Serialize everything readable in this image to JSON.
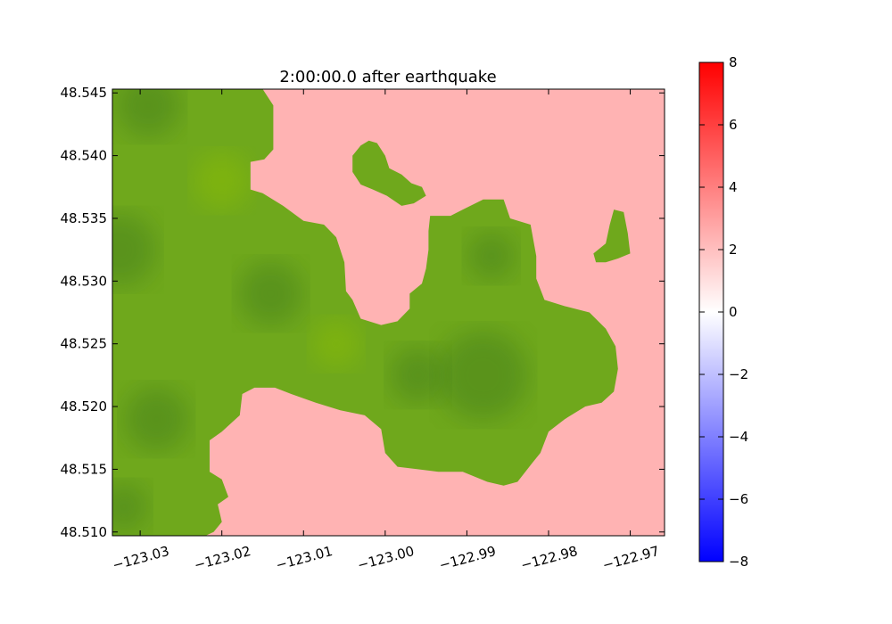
{
  "chart_data": {
    "type": "heatmap",
    "title": "2:00:00.0 after earthquake",
    "xlabel": "",
    "ylabel": "",
    "x_ticks": [
      -123.03,
      -123.02,
      -123.01,
      -123.0,
      -122.99,
      -122.98,
      -122.97
    ],
    "x_tick_labels": [
      "−123.03",
      "−123.02",
      "−123.01",
      "−123.00",
      "−122.99",
      "−122.98",
      "−122.97"
    ],
    "y_ticks": [
      48.51,
      48.515,
      48.52,
      48.525,
      48.53,
      48.535,
      48.54,
      48.545
    ],
    "y_tick_labels": [
      "48.510",
      "48.515",
      "48.520",
      "48.525",
      "48.530",
      "48.535",
      "48.540",
      "48.545"
    ],
    "xlim": [
      -123.0334,
      -122.9658
    ],
    "ylim": [
      48.5097,
      48.5453
    ],
    "grid": false,
    "land_color": "#6fa81c",
    "water_value": 2.4,
    "colorbar": {
      "range": [
        -8,
        8
      ],
      "ticks": [
        8,
        6,
        4,
        2,
        0,
        -2,
        -4,
        -6,
        -8
      ],
      "tick_labels": [
        "8",
        "6",
        "4",
        "2",
        "0",
        "−2",
        "−4",
        "−6",
        "−8"
      ],
      "colors": {
        "low": "#0000ff",
        "mid": "#ffffff",
        "high": "#ff0000"
      }
    },
    "land_regions": [
      {
        "name": "main_island",
        "outline": [
          [
            -123.0334,
            48.5453
          ],
          [
            -123.015,
            48.5453
          ],
          [
            -123.0137,
            48.544
          ],
          [
            -123.0137,
            48.5405
          ],
          [
            -123.0148,
            48.5397
          ],
          [
            -123.0165,
            48.5395
          ],
          [
            -123.0165,
            48.5373
          ],
          [
            -123.015,
            48.537
          ],
          [
            -123.0125,
            48.536
          ],
          [
            -123.01,
            48.5348
          ],
          [
            -123.0075,
            48.5345
          ],
          [
            -123.006,
            48.5335
          ],
          [
            -123.005,
            48.5315
          ],
          [
            -123.0048,
            48.5292
          ],
          [
            -123.004,
            48.5285
          ],
          [
            -123.003,
            48.527
          ],
          [
            -123.0005,
            48.5265
          ],
          [
            -122.9985,
            48.5268
          ],
          [
            -122.997,
            48.5278
          ],
          [
            -122.997,
            48.529
          ],
          [
            -122.9955,
            48.5298
          ],
          [
            -122.995,
            48.531
          ],
          [
            -122.9947,
            48.5325
          ],
          [
            -122.9947,
            48.534
          ],
          [
            -122.9945,
            48.5352
          ],
          [
            -122.992,
            48.5352
          ],
          [
            -122.9905,
            48.5357
          ],
          [
            -122.988,
            48.5365
          ],
          [
            -122.9855,
            48.5365
          ],
          [
            -122.9847,
            48.535
          ],
          [
            -122.9822,
            48.5345
          ],
          [
            -122.9815,
            48.532
          ],
          [
            -122.9815,
            48.5302
          ],
          [
            -122.9805,
            48.5285
          ],
          [
            -122.978,
            48.528
          ],
          [
            -122.975,
            48.5275
          ],
          [
            -122.973,
            48.5262
          ],
          [
            -122.9718,
            48.5248
          ],
          [
            -122.9715,
            48.523
          ],
          [
            -122.972,
            48.5212
          ],
          [
            -122.9735,
            48.5203
          ],
          [
            -122.9755,
            48.52
          ],
          [
            -122.978,
            48.519
          ],
          [
            -122.98,
            48.518
          ],
          [
            -122.981,
            48.5163
          ],
          [
            -122.982,
            48.5155
          ],
          [
            -122.9838,
            48.514
          ],
          [
            -122.9855,
            48.5137
          ],
          [
            -122.9875,
            48.514
          ],
          [
            -122.9905,
            48.5148
          ],
          [
            -122.9935,
            48.5148
          ],
          [
            -122.996,
            48.515
          ],
          [
            -122.9985,
            48.5152
          ],
          [
            -123.0,
            48.5163
          ],
          [
            -123.0005,
            48.5182
          ],
          [
            -123.0025,
            48.5193
          ],
          [
            -123.0055,
            48.5197
          ],
          [
            -123.0085,
            48.5203
          ],
          [
            -123.0115,
            48.521
          ],
          [
            -123.0135,
            48.5215
          ],
          [
            -123.016,
            48.5215
          ],
          [
            -123.0175,
            48.521
          ],
          [
            -123.0178,
            48.5193
          ],
          [
            -123.02,
            48.518
          ],
          [
            -123.0215,
            48.5173
          ],
          [
            -123.0215,
            48.5148
          ],
          [
            -123.02,
            48.5142
          ],
          [
            -123.0192,
            48.5128
          ],
          [
            -123.0205,
            48.5122
          ],
          [
            -123.02,
            48.5108
          ],
          [
            -123.021,
            48.51
          ],
          [
            -123.022,
            48.5097
          ],
          [
            -123.0334,
            48.5097
          ]
        ]
      },
      {
        "name": "inner_island",
        "outline": [
          [
            -123.002,
            48.5412
          ],
          [
            -123.001,
            48.541
          ],
          [
            -123.0,
            48.54
          ],
          [
            -122.9995,
            48.539
          ],
          [
            -122.998,
            48.5385
          ],
          [
            -122.9968,
            48.5378
          ],
          [
            -122.9955,
            48.5375
          ],
          [
            -122.995,
            48.5368
          ],
          [
            -122.9965,
            48.5362
          ],
          [
            -122.998,
            48.536
          ],
          [
            -122.9998,
            48.5368
          ],
          [
            -123.0015,
            48.5373
          ],
          [
            -123.003,
            48.5377
          ],
          [
            -123.004,
            48.5387
          ],
          [
            -123.004,
            48.54
          ],
          [
            -123.003,
            48.5408
          ]
        ]
      },
      {
        "name": "east_islet",
        "outline": [
          [
            -122.972,
            48.5357
          ],
          [
            -122.9708,
            48.5355
          ],
          [
            -122.9703,
            48.5338
          ],
          [
            -122.97,
            48.5322
          ],
          [
            -122.9715,
            48.5318
          ],
          [
            -122.973,
            48.5315
          ],
          [
            -122.9742,
            48.5315
          ],
          [
            -122.9745,
            48.5322
          ],
          [
            -122.973,
            48.533
          ],
          [
            -122.9725,
            48.5345
          ]
        ]
      }
    ],
    "land_shading": [
      {
        "x": -123.029,
        "y": 48.544,
        "r": 0.004,
        "tone": "dark"
      },
      {
        "x": -123.0325,
        "y": 48.5325,
        "r": 0.0045,
        "tone": "dark"
      },
      {
        "x": -123.014,
        "y": 48.529,
        "r": 0.004,
        "tone": "dark"
      },
      {
        "x": -123.006,
        "y": 48.525,
        "r": 0.003,
        "tone": "light"
      },
      {
        "x": -122.988,
        "y": 48.5225,
        "r": 0.0055,
        "tone": "dark"
      },
      {
        "x": -122.996,
        "y": 48.5225,
        "r": 0.0035,
        "tone": "dark"
      },
      {
        "x": -122.987,
        "y": 48.532,
        "r": 0.003,
        "tone": "dark"
      },
      {
        "x": -123.028,
        "y": 48.519,
        "r": 0.004,
        "tone": "dark"
      },
      {
        "x": -123.032,
        "y": 48.512,
        "r": 0.003,
        "tone": "dark"
      },
      {
        "x": -123.02,
        "y": 48.538,
        "r": 0.0035,
        "tone": "light"
      }
    ]
  }
}
